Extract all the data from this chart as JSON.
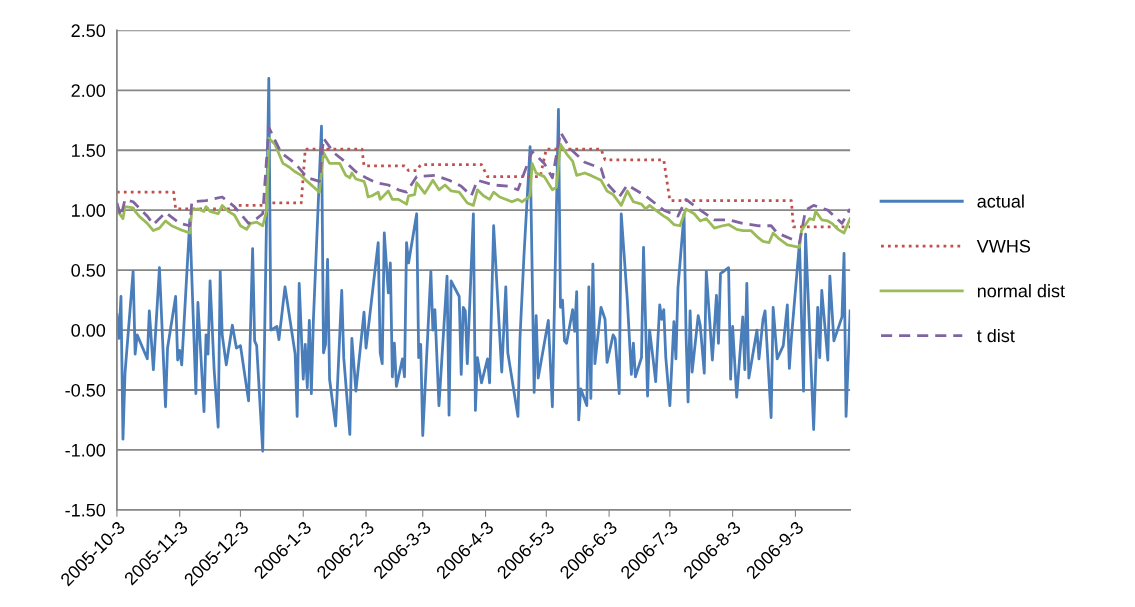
{
  "chart_data": {
    "type": "line",
    "xlim": [
      "2005-10-03",
      "2006-09-30"
    ],
    "xticks": [
      {
        "value": "2005-10-03",
        "label": "2005-10-3"
      },
      {
        "value": "2005-11-03",
        "label": "2005-11-3"
      },
      {
        "value": "2005-12-03",
        "label": "2005-12-3"
      },
      {
        "value": "2006-01-03",
        "label": "2006-1-3"
      },
      {
        "value": "2006-02-03",
        "label": "2006-2-3"
      },
      {
        "value": "2006-03-03",
        "label": "2006-3-3"
      },
      {
        "value": "2006-04-03",
        "label": "2006-4-3"
      },
      {
        "value": "2006-05-03",
        "label": "2006-5-3"
      },
      {
        "value": "2006-06-03",
        "label": "2006-6-3"
      },
      {
        "value": "2006-07-03",
        "label": "2006-7-3"
      },
      {
        "value": "2006-08-03",
        "label": "2006-8-3"
      },
      {
        "value": "2006-09-03",
        "label": "2006-9-3"
      }
    ],
    "ylim": [
      -1.5,
      2.5
    ],
    "yticks": [
      {
        "value": -1.5,
        "label": "-1.50"
      },
      {
        "value": -1.0,
        "label": "-1.00"
      },
      {
        "value": -0.5,
        "label": "-0.50"
      },
      {
        "value": 0,
        "label": "0.00"
      },
      {
        "value": 0.5,
        "label": "0.50"
      },
      {
        "value": 1.0,
        "label": "1.00"
      },
      {
        "value": 1.5,
        "label": "1.50"
      },
      {
        "value": 2.0,
        "label": "2.00"
      },
      {
        "value": 2.5,
        "label": "2.50"
      }
    ],
    "grid": "y",
    "legend": "right",
    "marker": "none",
    "series": [
      {
        "name": "actual",
        "color": "#4a7ebb",
        "line_style": "solid",
        "x": [
          "2005-10-03",
          "2005-10-04",
          "2005-10-05",
          "2005-10-06",
          "2005-10-07",
          "2005-10-11",
          "2005-10-12",
          "2005-10-13",
          "2005-10-18",
          "2005-10-19",
          "2005-10-21",
          "2005-10-24",
          "2005-10-27",
          "2005-10-28",
          "2005-11-01",
          "2005-11-02",
          "2005-11-03",
          "2005-11-04",
          "2005-11-08",
          "2005-11-11",
          "2005-11-12",
          "2005-11-15",
          "2005-11-16",
          "2005-11-17",
          "2005-11-18",
          "2005-11-20",
          "2005-11-22",
          "2005-11-23",
          "2005-11-24",
          "2005-11-26",
          "2005-11-29",
          "2005-12-01",
          "2005-12-03",
          "2005-12-07",
          "2005-12-09",
          "2005-12-10",
          "2005-12-11",
          "2005-12-14",
          "2005-12-17",
          "2005-12-18",
          "2005-12-19",
          "2005-12-21",
          "2005-12-22",
          "2005-12-25",
          "2005-12-30",
          "2005-12-31",
          "2006-01-01",
          "2006-01-03",
          "2006-01-04",
          "2006-01-05",
          "2006-01-06",
          "2006-01-07",
          "2006-01-08",
          "2006-01-12",
          "2006-01-13",
          "2006-01-14",
          "2006-01-15",
          "2006-01-16",
          "2006-01-19",
          "2006-01-22",
          "2006-01-23",
          "2006-01-26",
          "2006-01-27",
          "2006-01-29",
          "2006-02-02",
          "2006-02-03",
          "2006-02-09",
          "2006-02-10",
          "2006-02-11",
          "2006-02-12",
          "2006-02-14",
          "2006-02-15",
          "2006-02-16",
          "2006-02-17",
          "2006-02-18",
          "2006-02-21",
          "2006-02-22",
          "2006-02-23",
          "2006-02-24",
          "2006-02-28",
          "2006-03-01",
          "2006-03-02",
          "2006-03-03",
          "2006-03-07",
          "2006-03-08",
          "2006-03-09",
          "2006-03-11",
          "2006-03-15",
          "2006-03-16",
          "2006-03-17",
          "2006-03-21",
          "2006-03-22",
          "2006-03-23",
          "2006-03-24",
          "2006-03-25",
          "2006-03-28",
          "2006-03-29",
          "2006-03-30",
          "2006-04-01",
          "2006-04-04",
          "2006-04-05",
          "2006-04-07",
          "2006-04-11",
          "2006-04-13",
          "2006-04-14",
          "2006-04-19",
          "2006-04-20",
          "2006-04-22",
          "2006-04-25",
          "2006-04-27",
          "2006-04-28",
          "2006-04-29",
          "2006-05-04",
          "2006-05-06",
          "2006-05-09",
          "2006-05-10",
          "2006-05-11",
          "2006-05-12",
          "2006-05-13",
          "2006-05-16",
          "2006-05-17",
          "2006-05-18",
          "2006-05-19",
          "2006-05-20",
          "2006-05-23",
          "2006-05-24",
          "2006-05-25",
          "2006-05-26",
          "2006-05-27",
          "2006-05-30",
          "2006-06-01",
          "2006-06-02",
          "2006-06-05",
          "2006-06-06",
          "2006-06-08",
          "2006-06-09",
          "2006-06-12",
          "2006-06-14",
          "2006-06-15",
          "2006-06-16",
          "2006-06-19",
          "2006-06-20",
          "2006-06-22",
          "2006-06-23",
          "2006-06-25",
          "2006-06-26",
          "2006-06-28",
          "2006-06-29",
          "2006-06-30",
          "2006-07-01",
          "2006-07-03",
          "2006-07-05",
          "2006-07-06",
          "2006-07-07",
          "2006-07-10",
          "2006-07-11",
          "2006-07-12",
          "2006-07-13",
          "2006-07-14",
          "2006-07-17",
          "2006-07-18",
          "2006-07-20",
          "2006-07-21",
          "2006-07-24",
          "2006-07-26",
          "2006-07-27",
          "2006-07-28",
          "2006-08-01",
          "2006-08-02",
          "2006-08-03",
          "2006-08-05",
          "2006-08-08",
          "2006-08-09",
          "2006-08-10",
          "2006-08-11",
          "2006-08-15",
          "2006-08-16",
          "2006-08-18",
          "2006-08-19",
          "2006-08-22",
          "2006-08-23",
          "2006-08-25",
          "2006-08-28",
          "2006-08-30",
          "2006-08-31",
          "2006-09-01",
          "2006-09-05",
          "2006-09-07",
          "2006-09-08",
          "2006-09-12",
          "2006-09-14",
          "2006-09-15",
          "2006-09-16",
          "2006-09-19",
          "2006-09-20",
          "2006-09-22",
          "2006-09-26",
          "2006-09-27",
          "2006-09-28",
          "2006-09-30"
        ],
        "values": [
          0.13,
          -0.07,
          0.28,
          -0.91,
          -0.36,
          0.49,
          -0.2,
          -0.04,
          -0.24,
          0.16,
          -0.33,
          0.52,
          -0.64,
          -0.15,
          0.28,
          -0.25,
          -0.17,
          -0.29,
          0.92,
          -0.53,
          0.23,
          -0.68,
          -0.04,
          -0.2,
          0.41,
          -0.33,
          -0.81,
          0.49,
          -0.04,
          -0.29,
          0.04,
          -0.15,
          -0.13,
          -0.59,
          0.68,
          -0.09,
          -0.13,
          -1.01,
          2.1,
          0.0,
          0.01,
          0.03,
          -0.08,
          0.36,
          -0.2,
          -0.72,
          0.39,
          -0.41,
          -0.12,
          -0.48,
          0.08,
          -0.53,
          0.08,
          1.7,
          -0.19,
          -0.12,
          0.59,
          -0.41,
          -0.8,
          0.33,
          -0.23,
          -0.87,
          -0.07,
          -0.51,
          0.15,
          -0.15,
          0.73,
          -0.19,
          -0.28,
          0.81,
          0.31,
          0.56,
          -0.39,
          -0.11,
          -0.47,
          -0.24,
          -0.39,
          0.73,
          0.56,
          0.97,
          -0.23,
          -0.12,
          -0.88,
          0.49,
          0.0,
          0.17,
          -0.63,
          0.45,
          -0.71,
          0.41,
          0.28,
          -0.37,
          0.19,
          0.16,
          -0.28,
          0.97,
          -0.67,
          -0.23,
          -0.44,
          -0.24,
          -0.44,
          0.87,
          -0.35,
          0.36,
          -0.19,
          -0.72,
          -0.07,
          0.63,
          1.53,
          -0.52,
          0.12,
          -0.4,
          0.08,
          -0.64,
          1.84,
          0.19,
          0.25,
          -0.09,
          -0.11,
          0.17,
          -0.01,
          0.32,
          -0.75,
          -0.49,
          -0.63,
          0.36,
          -0.57,
          0.55,
          -0.28,
          0.19,
          0.09,
          -0.27,
          -0.04,
          -0.07,
          -0.53,
          0.97,
          0.25,
          -0.37,
          -0.11,
          -0.39,
          -0.23,
          0.69,
          -0.55,
          0.0,
          -0.28,
          -0.43,
          0.21,
          0.09,
          0.17,
          -0.23,
          -0.63,
          0.07,
          -0.24,
          0.35,
          0.97,
          -0.04,
          -0.6,
          0.16,
          -0.35,
          0.12,
          0.04,
          -0.36,
          0.49,
          -0.25,
          0.29,
          -0.11,
          0.47,
          0.52,
          -0.41,
          0.03,
          -0.56,
          0.11,
          -0.33,
          0.39,
          -0.4,
          0.0,
          -0.24,
          0.09,
          0.16,
          -0.73,
          0.19,
          -0.24,
          -0.13,
          0.21,
          -0.32,
          -0.07,
          0.73,
          -0.51,
          0.8,
          -0.83,
          0.19,
          -0.23,
          0.33,
          -0.25,
          0.45,
          -0.09,
          0.11,
          0.64,
          -0.72,
          0.16
        ]
      },
      {
        "name": "VWHS",
        "color": "#c0504d",
        "line_style": "dotted",
        "x": [
          "2005-10-03",
          "2005-10-31",
          "2005-11-01",
          "2005-12-01",
          "2005-12-02",
          "2005-12-14",
          "2005-12-15",
          "2006-01-02",
          "2006-01-04",
          "2006-02-01",
          "2006-02-02",
          "2006-02-22",
          "2006-02-24",
          "2006-02-28",
          "2006-03-02",
          "2006-04-01",
          "2006-04-04",
          "2006-04-30",
          "2006-05-03",
          "2006-05-30",
          "2006-06-01",
          "2006-06-30",
          "2006-07-03",
          "2006-09-01",
          "2006-09-02",
          "2006-09-30"
        ],
        "values": [
          1.15,
          1.15,
          1.01,
          1.01,
          1.04,
          1.04,
          1.06,
          1.06,
          1.51,
          1.51,
          1.37,
          1.37,
          1.33,
          1.33,
          1.38,
          1.38,
          1.28,
          1.28,
          1.51,
          1.51,
          1.42,
          1.42,
          1.08,
          1.08,
          0.86,
          0.86
        ]
      },
      {
        "name": "normal dist",
        "color": "#9bbb59",
        "line_style": "solid",
        "x": [
          "2005-10-03",
          "2005-10-06",
          "2005-10-07",
          "2005-10-11",
          "2005-10-12",
          "2005-10-14",
          "2005-10-18",
          "2005-10-21",
          "2005-10-24",
          "2005-10-27",
          "2005-10-30",
          "2005-11-03",
          "2005-11-08",
          "2005-11-09",
          "2005-11-12",
          "2005-11-15",
          "2005-11-16",
          "2005-11-18",
          "2005-11-22",
          "2005-11-24",
          "2005-11-27",
          "2005-11-30",
          "2005-12-03",
          "2005-12-06",
          "2005-12-08",
          "2005-12-11",
          "2005-12-14",
          "2005-12-16",
          "2005-12-17",
          "2005-12-20",
          "2005-12-24",
          "2005-12-27",
          "2005-12-30",
          "2006-01-02",
          "2006-01-05",
          "2006-01-11",
          "2006-01-13",
          "2006-01-16",
          "2006-01-19",
          "2006-01-21",
          "2006-01-24",
          "2006-01-26",
          "2006-01-27",
          "2006-01-29",
          "2006-02-02",
          "2006-02-03",
          "2006-02-04",
          "2006-02-06",
          "2006-02-09",
          "2006-02-10",
          "2006-02-14",
          "2006-02-16",
          "2006-02-19",
          "2006-02-23",
          "2006-02-24",
          "2006-02-27",
          "2006-02-28",
          "2006-03-04",
          "2006-03-08",
          "2006-03-11",
          "2006-03-14",
          "2006-03-17",
          "2006-03-21",
          "2006-03-25",
          "2006-03-28",
          "2006-03-30",
          "2006-04-02",
          "2006-04-05",
          "2006-04-07",
          "2006-04-10",
          "2006-04-16",
          "2006-04-19",
          "2006-04-21",
          "2006-04-25",
          "2006-04-26",
          "2006-04-28",
          "2006-05-02",
          "2006-05-06",
          "2006-05-08",
          "2006-05-10",
          "2006-05-13",
          "2006-05-16",
          "2006-05-18",
          "2006-05-22",
          "2006-05-25",
          "2006-05-30",
          "2006-06-02",
          "2006-06-05",
          "2006-06-09",
          "2006-06-12",
          "2006-06-15",
          "2006-06-19",
          "2006-06-21",
          "2006-06-23",
          "2006-06-26",
          "2006-06-30",
          "2006-07-02",
          "2006-07-05",
          "2006-07-08",
          "2006-07-11",
          "2006-07-15",
          "2006-07-18",
          "2006-07-21",
          "2006-07-25",
          "2006-07-29",
          "2006-08-01",
          "2006-08-05",
          "2006-08-08",
          "2006-08-12",
          "2006-08-15",
          "2006-08-18",
          "2006-08-21",
          "2006-08-23",
          "2006-08-26",
          "2006-08-30",
          "2006-09-02",
          "2006-09-05",
          "2006-09-06",
          "2006-09-10",
          "2006-09-12",
          "2006-09-13",
          "2006-09-16",
          "2006-09-19",
          "2006-09-21",
          "2006-09-24",
          "2006-09-27",
          "2006-09-30"
        ],
        "values": [
          1.0,
          0.93,
          1.03,
          1.02,
          0.99,
          0.95,
          0.89,
          0.83,
          0.85,
          0.91,
          0.87,
          0.84,
          0.81,
          1.0,
          1.01,
          0.99,
          1.03,
          0.99,
          0.97,
          1.04,
          0.99,
          0.96,
          0.87,
          0.84,
          0.89,
          0.9,
          0.87,
          1.0,
          1.6,
          1.55,
          1.39,
          1.36,
          1.32,
          1.29,
          1.24,
          1.15,
          1.48,
          1.39,
          1.39,
          1.39,
          1.29,
          1.27,
          1.31,
          1.26,
          1.24,
          1.19,
          1.11,
          1.12,
          1.15,
          1.09,
          1.16,
          1.09,
          1.09,
          1.05,
          1.12,
          1.13,
          1.23,
          1.14,
          1.25,
          1.17,
          1.21,
          1.16,
          1.15,
          1.06,
          1.04,
          1.17,
          1.12,
          1.09,
          1.15,
          1.11,
          1.07,
          1.09,
          1.07,
          1.12,
          1.39,
          1.31,
          1.28,
          1.17,
          1.19,
          1.55,
          1.47,
          1.41,
          1.29,
          1.31,
          1.29,
          1.25,
          1.16,
          1.13,
          1.04,
          1.16,
          1.07,
          1.05,
          1.01,
          1.04,
          1.0,
          0.95,
          0.93,
          0.88,
          0.87,
          1.01,
          0.97,
          0.91,
          0.93,
          0.85,
          0.87,
          0.88,
          0.84,
          0.83,
          0.83,
          0.78,
          0.74,
          0.73,
          0.81,
          0.76,
          0.71,
          0.7,
          0.69,
          0.83,
          0.93,
          0.92,
          0.99,
          0.92,
          0.91,
          0.89,
          0.84,
          0.81,
          0.93
        ]
      },
      {
        "name": "t dist",
        "color": "#8064a2",
        "line_style": "dashed",
        "x": [
          "2005-10-03",
          "2005-10-05",
          "2005-10-07",
          "2005-10-11",
          "2005-10-18",
          "2005-10-21",
          "2005-10-27",
          "2005-11-03",
          "2005-11-08",
          "2005-11-09",
          "2005-11-16",
          "2005-11-24",
          "2005-11-30",
          "2005-12-07",
          "2005-12-11",
          "2005-12-14",
          "2005-12-17",
          "2005-12-23",
          "2005-12-30",
          "2006-01-05",
          "2006-01-11",
          "2006-01-13",
          "2006-01-18",
          "2006-01-24",
          "2006-01-29",
          "2006-02-03",
          "2006-02-08",
          "2006-02-14",
          "2006-02-19",
          "2006-02-23",
          "2006-02-28",
          "2006-03-09",
          "2006-03-16",
          "2006-03-22",
          "2006-03-27",
          "2006-03-30",
          "2006-04-07",
          "2006-04-14",
          "2006-04-19",
          "2006-04-26",
          "2006-05-02",
          "2006-05-06",
          "2006-05-10",
          "2006-05-15",
          "2006-05-22",
          "2006-05-30",
          "2006-06-01",
          "2006-06-08",
          "2006-06-12",
          "2006-06-21",
          "2006-06-30",
          "2006-07-07",
          "2006-07-11",
          "2006-07-18",
          "2006-07-25",
          "2006-08-01",
          "2006-08-08",
          "2006-08-16",
          "2006-08-22",
          "2006-08-25",
          "2006-09-05",
          "2006-09-08",
          "2006-09-12",
          "2006-09-19",
          "2006-09-26",
          "2006-09-30"
        ],
        "values": [
          1.06,
          0.95,
          1.09,
          1.07,
          0.95,
          0.88,
          0.98,
          0.89,
          0.87,
          1.07,
          1.08,
          1.11,
          1.03,
          0.89,
          0.93,
          0.97,
          1.69,
          1.48,
          1.39,
          1.27,
          1.24,
          1.6,
          1.48,
          1.4,
          1.32,
          1.27,
          1.23,
          1.21,
          1.17,
          1.15,
          1.28,
          1.29,
          1.25,
          1.2,
          1.12,
          1.25,
          1.21,
          1.2,
          1.17,
          1.49,
          1.39,
          1.27,
          1.65,
          1.51,
          1.4,
          1.35,
          1.24,
          1.11,
          1.21,
          1.12,
          1.0,
          0.95,
          1.09,
          1.0,
          0.92,
          0.92,
          0.89,
          0.87,
          0.87,
          0.81,
          0.73,
          1.0,
          1.04,
          1.0,
          0.89,
          1.01
        ]
      }
    ]
  }
}
